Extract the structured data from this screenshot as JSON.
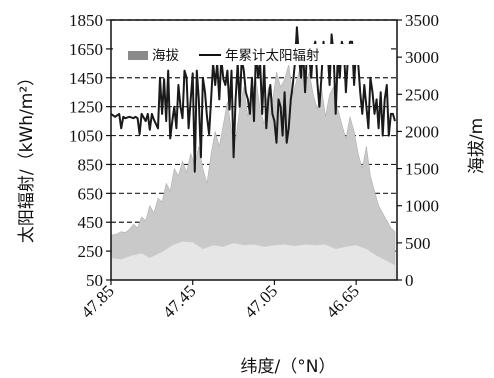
{
  "chart_data": {
    "type": "line",
    "ylabel_left": "太阳辐射/（kWh/m²）",
    "ylabel_right": "海拔/m",
    "xlabel": "纬度/（°N）",
    "legend": [
      {
        "name": "海拔",
        "style": "area"
      },
      {
        "name": "年累计太阳辐射",
        "style": "line"
      }
    ],
    "legend_position": "top",
    "x_ticks": [
      "47.85",
      "47.45",
      "47.05",
      "46.65"
    ],
    "x_range": [
      47.85,
      46.45
    ],
    "y_left_ticks": [
      "50",
      "250",
      "450",
      "650",
      "850",
      "1050",
      "1250",
      "1450",
      "1650",
      "1850"
    ],
    "y_left_range": [
      50,
      1850
    ],
    "y_right_ticks": [
      "0",
      "500",
      "1000",
      "1500",
      "2000",
      "2500",
      "3000",
      "3500"
    ],
    "y_right_range": [
      0,
      3500
    ],
    "grid": "dashed-horizontal",
    "colors": {
      "line": "#1a1a1a",
      "elevation_fill": "#c9c9c9",
      "grid": "#222222"
    },
    "series": [
      {
        "name": "年累计太阳辐射",
        "axis": "left",
        "x": [
          47.85,
          47.83,
          47.81,
          47.8,
          47.79,
          47.78,
          47.76,
          47.74,
          47.73,
          47.72,
          47.71,
          47.7,
          47.68,
          47.67,
          47.66,
          47.65,
          47.64,
          47.62,
          47.61,
          47.6,
          47.59,
          47.58,
          47.57,
          47.56,
          47.55,
          47.54,
          47.53,
          47.52,
          47.51,
          47.5,
          47.49,
          47.48,
          47.47,
          47.46,
          47.45,
          47.44,
          47.43,
          47.42,
          47.41,
          47.4,
          47.39,
          47.38,
          47.37,
          47.36,
          47.35,
          47.34,
          47.33,
          47.32,
          47.31,
          47.3,
          47.29,
          47.28,
          47.27,
          47.26,
          47.25,
          47.24,
          47.23,
          47.22,
          47.21,
          47.2,
          47.19,
          47.18,
          47.17,
          47.16,
          47.15,
          47.14,
          47.13,
          47.12,
          47.11,
          47.1,
          47.09,
          47.08,
          47.07,
          47.06,
          47.05,
          47.04,
          47.03,
          47.02,
          47.01,
          47.0,
          46.99,
          46.98,
          46.97,
          46.96,
          46.95,
          46.94,
          46.93,
          46.92,
          46.91,
          46.9,
          46.89,
          46.88,
          46.87,
          46.86,
          46.85,
          46.84,
          46.83,
          46.82,
          46.81,
          46.8,
          46.79,
          46.78,
          46.77,
          46.76,
          46.75,
          46.74,
          46.73,
          46.72,
          46.71,
          46.7,
          46.69,
          46.68,
          46.67,
          46.66,
          46.65,
          46.64,
          46.63,
          46.62,
          46.61,
          46.6,
          46.59,
          46.58,
          46.57,
          46.56,
          46.55,
          46.54,
          46.53,
          46.52,
          46.51,
          46.5,
          46.49,
          46.48,
          46.47,
          46.46
        ],
        "values": [
          1200,
          1180,
          1200,
          1100,
          1180,
          1170,
          1180,
          1170,
          1180,
          1170,
          1060,
          1200,
          1150,
          1200,
          1090,
          1200,
          1160,
          1100,
          1450,
          1200,
          1440,
          1150,
          1500,
          1030,
          1150,
          1250,
          1100,
          1400,
          1250,
          1170,
          1500,
          1450,
          1100,
          1300,
          1480,
          800,
          1500,
          1300,
          900,
          1450,
          1350,
          1180,
          1060,
          1300,
          1550,
          1400,
          1550,
          1300,
          1580,
          1440,
          1400,
          1500,
          1230,
          1500,
          900,
          1300,
          1550,
          1250,
          1580,
          1500,
          1350,
          1300,
          1200,
          1450,
          1150,
          1650,
          1450,
          1560,
          1200,
          1550,
          1100,
          1300,
          1400,
          1200,
          1150,
          1000,
          1300,
          1250,
          1050,
          1350,
          1000,
          1100,
          1300,
          1400,
          1550,
          1800,
          1600,
          1450,
          1650,
          1350,
          1650,
          1600,
          1450,
          1650,
          1700,
          1420,
          1250,
          1450,
          1700,
          1550,
          1650,
          1400,
          1750,
          1600,
          1200,
          1600,
          1450,
          1700,
          1650,
          1350,
          1600,
          1700,
          1700,
          1400,
          1650,
          1550,
          1350,
          1200,
          1400,
          1250,
          1100,
          1450,
          1350,
          1200,
          1300,
          1100,
          1350,
          1050,
          1300,
          1400,
          1050,
          1200,
          1200,
          1150
        ]
      },
      {
        "name": "海拔",
        "axis": "right",
        "x": [
          47.85,
          47.82,
          47.8,
          47.78,
          47.76,
          47.74,
          47.72,
          47.7,
          47.68,
          47.66,
          47.64,
          47.62,
          47.6,
          47.58,
          47.56,
          47.54,
          47.52,
          47.5,
          47.48,
          47.46,
          47.44,
          47.42,
          47.4,
          47.38,
          47.36,
          47.34,
          47.32,
          47.3,
          47.28,
          47.26,
          47.24,
          47.22,
          47.2,
          47.18,
          47.16,
          47.14,
          47.12,
          47.1,
          47.08,
          47.06,
          47.04,
          47.02,
          47.0,
          46.98,
          46.96,
          46.94,
          46.92,
          46.9,
          46.88,
          46.86,
          46.84,
          46.82,
          46.8,
          46.78,
          46.76,
          46.74,
          46.72,
          46.7,
          46.68,
          46.66,
          46.64,
          46.62,
          46.6,
          46.58,
          46.56,
          46.54,
          46.52,
          46.5,
          46.48,
          46.46
        ],
        "values": [
          600,
          620,
          650,
          640,
          680,
          750,
          700,
          850,
          800,
          1000,
          900,
          1100,
          1050,
          1300,
          1200,
          1500,
          1400,
          1600,
          1450,
          1700,
          1550,
          1800,
          1500,
          1300,
          1700,
          2000,
          1800,
          2100,
          2400,
          2000,
          1900,
          2300,
          2600,
          2200,
          2500,
          2700,
          2300,
          2100,
          2600,
          2400,
          2800,
          2600,
          2700,
          2900,
          2500,
          2700,
          2900,
          2600,
          2800,
          2500,
          2300,
          2600,
          2200,
          2500,
          2600,
          2300,
          2100,
          1900,
          2200,
          2000,
          1700,
          1500,
          1800,
          1400,
          1200,
          1000,
          900,
          800,
          700,
          650
        ]
      }
    ]
  }
}
